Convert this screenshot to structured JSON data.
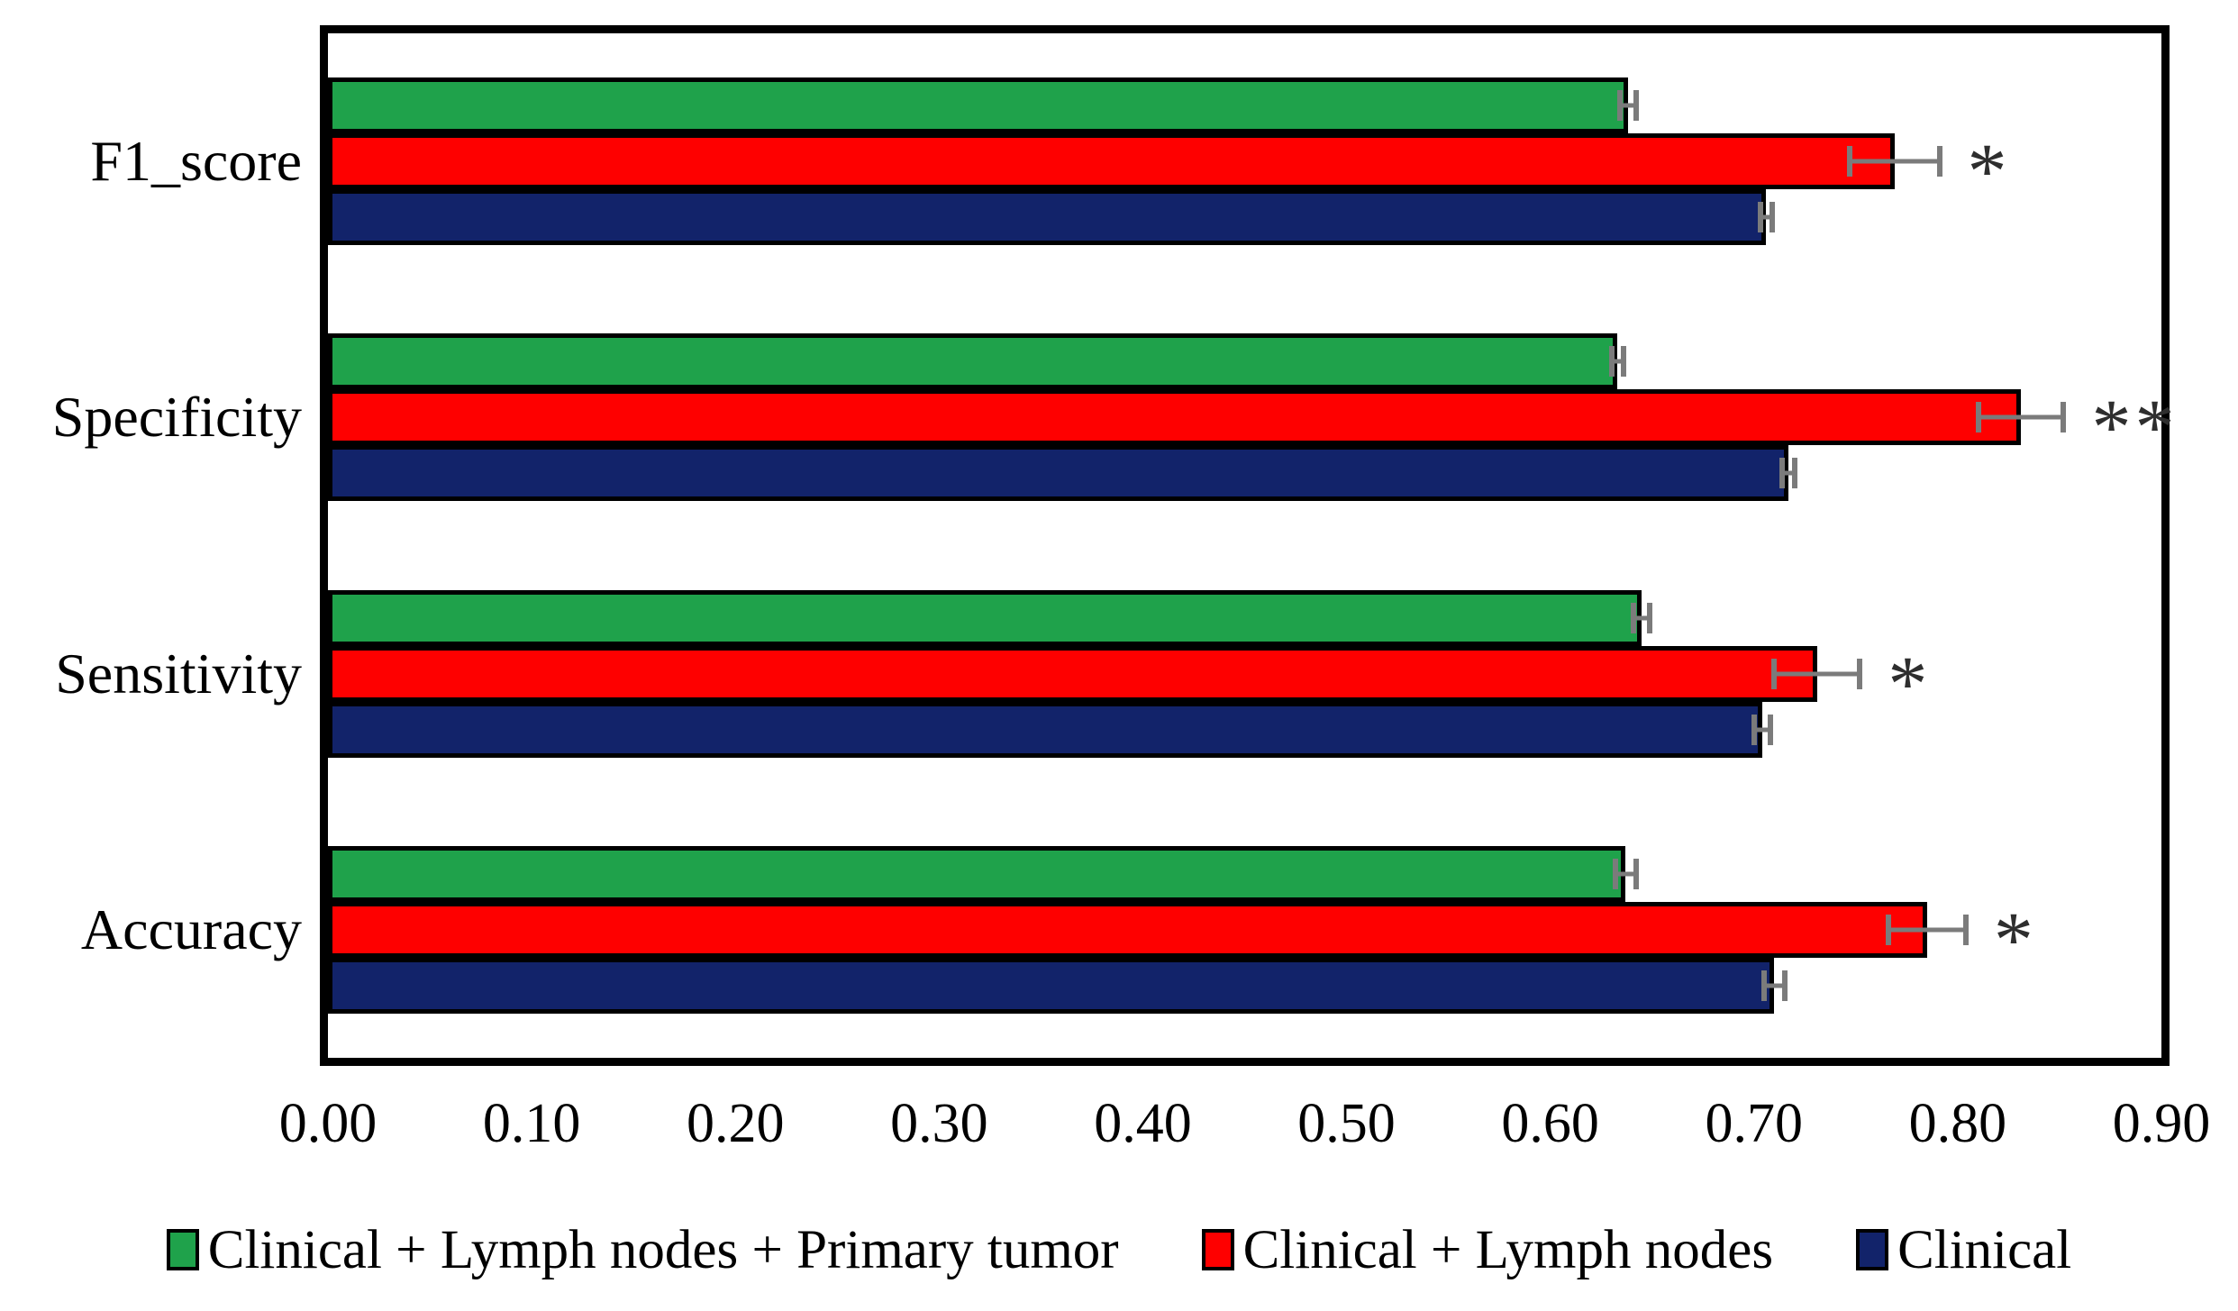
{
  "figure": {
    "background": "#ffffff",
    "axis_color": "#000000"
  },
  "chart_data": {
    "type": "bar",
    "orientation": "horizontal",
    "title": "",
    "xlabel": "",
    "ylabel": "",
    "grid": false,
    "xlim": [
      0,
      0.9
    ],
    "xtick_labels": [
      "0.00",
      "0.10",
      "0.20",
      "0.30",
      "0.40",
      "0.50",
      "0.60",
      "0.70",
      "0.80",
      "0.90"
    ],
    "categories": [
      "F1_score",
      "Specificity",
      "Sensitivity",
      "Accuracy"
    ],
    "series": [
      {
        "name": "Clinical + Lymph nodes + Primary tumor",
        "color": "#1fa24b",
        "values": [
          0.638,
          0.633,
          0.645,
          0.637
        ],
        "errors": [
          0.004,
          0.003,
          0.004,
          0.005
        ],
        "significance": [
          "",
          "",
          "",
          ""
        ]
      },
      {
        "name": "Clinical + Lymph nodes",
        "color": "#fe0000",
        "values": [
          0.769,
          0.831,
          0.731,
          0.785
        ],
        "errors": [
          0.022,
          0.021,
          0.021,
          0.019
        ],
        "significance": [
          "*",
          "**",
          "*",
          "*"
        ]
      },
      {
        "name": "Clinical",
        "color": "#12236a",
        "values": [
          0.706,
          0.717,
          0.704,
          0.71
        ],
        "errors": [
          0.003,
          0.003,
          0.004,
          0.005
        ],
        "significance": [
          "",
          "",
          "",
          ""
        ]
      }
    ],
    "bar_border_color": "#000000",
    "error_bar_color": "#7b7b7b",
    "significance_color": "#2e2e2e",
    "legend_position": "bottom",
    "legend": [
      "Clinical + Lymph nodes + Primary tumor",
      "Clinical + Lymph nodes",
      "Clinical"
    ]
  }
}
